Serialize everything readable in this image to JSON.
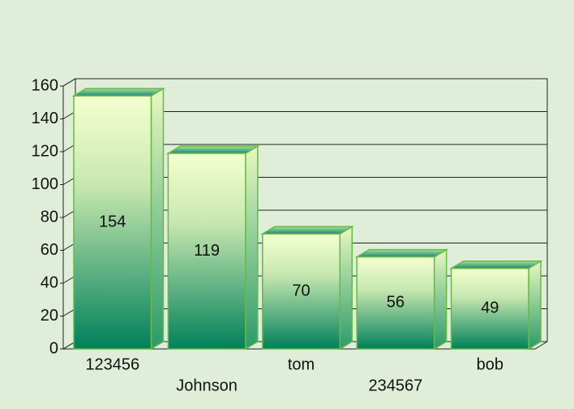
{
  "chart_data": {
    "type": "bar",
    "categories": [
      "123456",
      "Johnson",
      "tom",
      "234567",
      "bob"
    ],
    "values": [
      154,
      119,
      70,
      56,
      49
    ],
    "ylim": [
      0,
      160
    ],
    "yticks": [
      0,
      20,
      40,
      60,
      80,
      100,
      120,
      140,
      160
    ],
    "grid": true,
    "color": "#00805a"
  }
}
